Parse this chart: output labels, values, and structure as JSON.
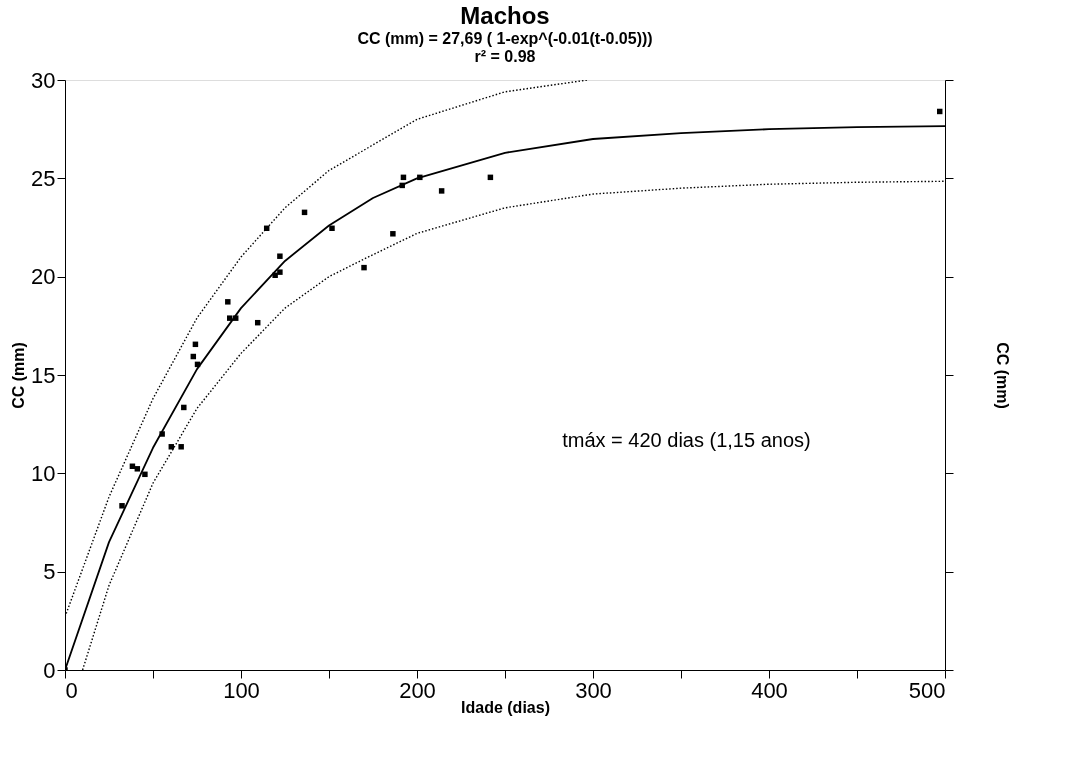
{
  "chart_data": {
    "type": "scatter",
    "title": "Machos",
    "subtitle": [
      "CC (mm) = 27,69 ( 1-exp^(-0.01(t-0.05)))",
      "r² = 0.98"
    ],
    "xlabel": "Idade (dias)",
    "ylabel": "CC (mm)",
    "y2label": "CC (mm)",
    "annotations": [
      "tmáx = 420 dias (1,15 anos)"
    ],
    "marker": "square",
    "grid": false,
    "xlim": [
      0,
      500
    ],
    "ylim": [
      0,
      30
    ],
    "xticks": [
      0,
      {
        "value": 50,
        "label": null
      },
      100,
      {
        "value": 150,
        "label": null
      },
      200,
      {
        "value": 250,
        "label": null
      },
      300,
      {
        "value": 350,
        "label": null
      },
      400,
      {
        "value": 450,
        "label": null
      },
      500
    ],
    "yticks": [
      0,
      5,
      10,
      15,
      20,
      25,
      30
    ],
    "series": [
      {
        "color": "#000000",
        "x": [
          0,
          32.4,
          38.3,
          41.1,
          45.4,
          55.2,
          60.4,
          66.0,
          67.5,
          72.9,
          74.1,
          75.3,
          92.5,
          93.6,
          97.0,
          109.5,
          114.6,
          119.4,
          122.1,
          122.1,
          136.1,
          151.7,
          169.9,
          186.3,
          191.6,
          192.3,
          201.6,
          214.0,
          241.7,
          497
        ],
        "values": [
          0,
          8.35,
          10.36,
          10.23,
          9.95,
          12.0,
          11.35,
          11.35,
          13.35,
          15.94,
          16.56,
          15.54,
          18.72,
          17.89,
          17.89,
          17.66,
          22.46,
          20.07,
          20.23,
          21.04,
          23.27,
          22.46,
          20.46,
          22.18,
          24.64,
          25.05,
          25.05,
          24.36,
          25.05,
          28.4
        ]
      },
      {
        "type": "line",
        "marker": "none",
        "color": "#000000",
        "line_style": "solid",
        "x": [
          0,
          25,
          50,
          75,
          100,
          125,
          150,
          175,
          200,
          250,
          300,
          350,
          400,
          450,
          500
        ],
        "values": [
          0,
          6.5,
          11.3,
          15.3,
          18.4,
          20.8,
          22.6,
          24.0,
          25.0,
          26.3,
          27.0,
          27.3,
          27.5,
          27.6,
          27.65
        ]
      },
      {
        "type": "line",
        "marker": "none",
        "color": "#000000",
        "line_style": "dotted",
        "x": [
          0,
          25,
          50,
          75,
          100,
          125,
          150,
          200,
          250,
          297
        ],
        "values": [
          2.7,
          8.8,
          13.8,
          17.9,
          21.0,
          23.5,
          25.4,
          28.0,
          29.4,
          30
        ]
      },
      {
        "type": "line",
        "marker": "none",
        "color": "#000000",
        "line_style": "dotted",
        "x": [
          10,
          25,
          50,
          75,
          100,
          125,
          150,
          170,
          200,
          250,
          300,
          350,
          400,
          450,
          500
        ],
        "values": [
          0,
          4.3,
          9.5,
          13.3,
          16.1,
          18.4,
          20.0,
          20.9,
          22.2,
          23.5,
          24.2,
          24.5,
          24.7,
          24.8,
          24.85
        ]
      }
    ]
  }
}
